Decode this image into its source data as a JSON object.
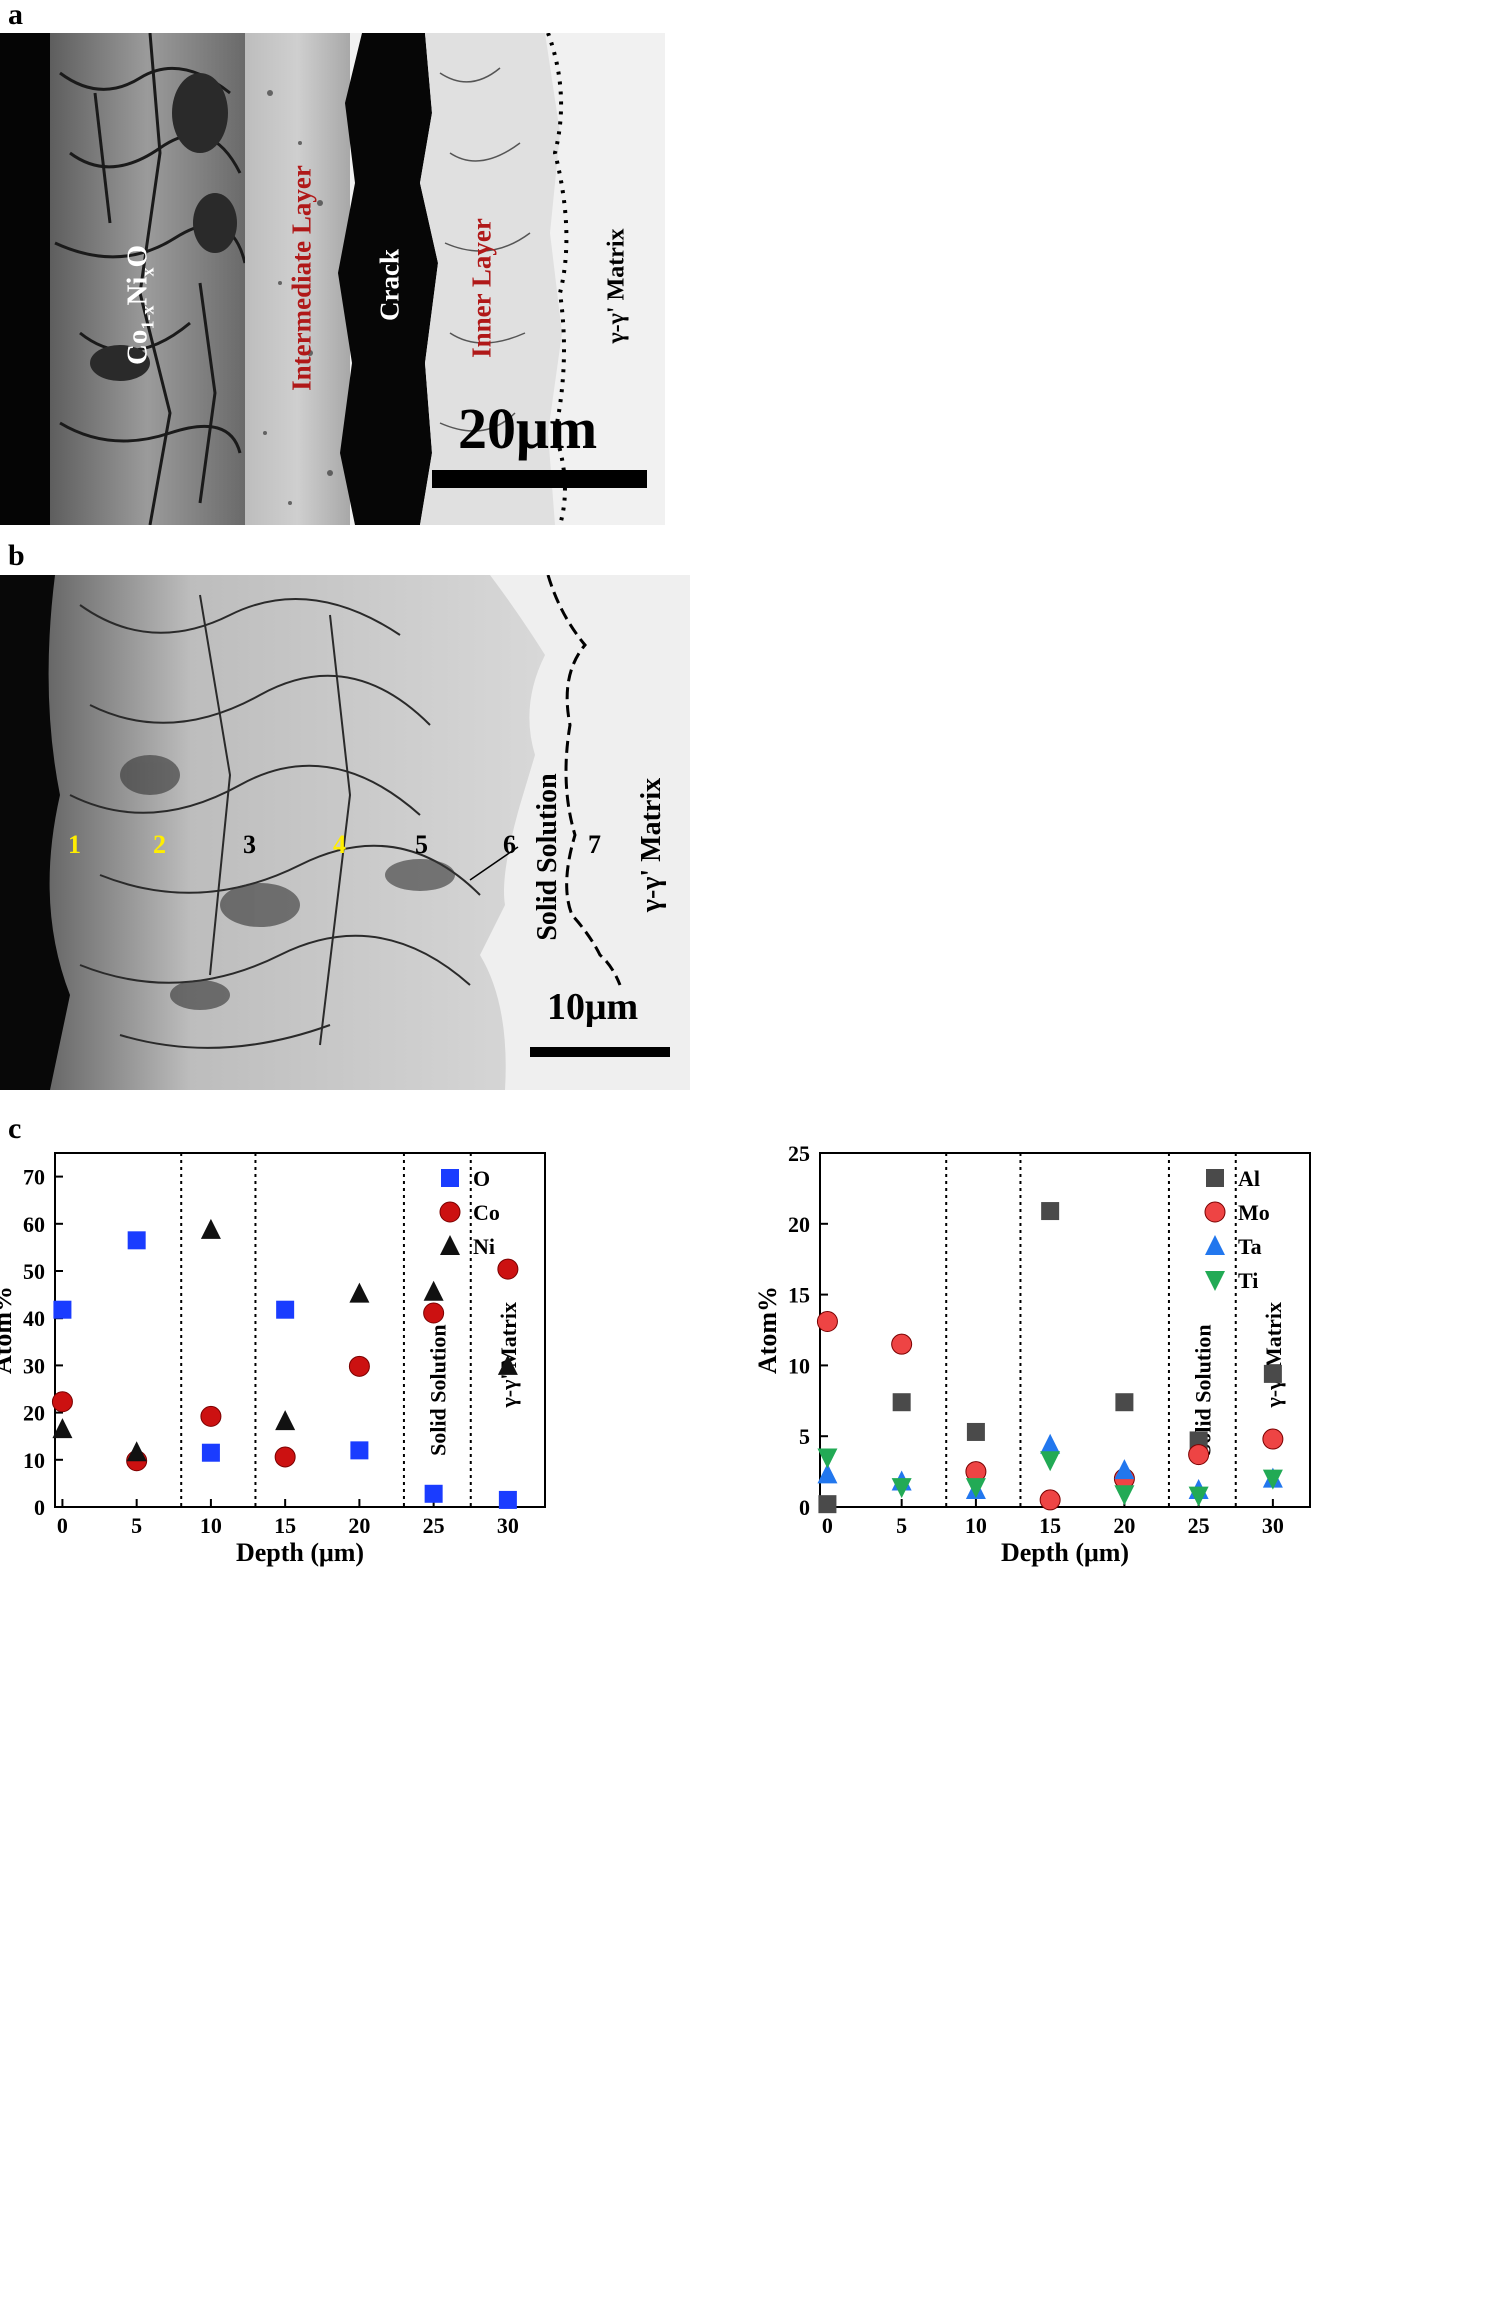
{
  "panels": {
    "a": {
      "label": "a",
      "labels": {
        "oxide": "Co1-xNixO",
        "oxide_base": "Co",
        "oxide_sub1": "1-x",
        "oxide_mid": "Ni",
        "oxide_sub2": "x",
        "oxide_end": "O",
        "intermediate": "Intermediate Layer",
        "crack": "Crack",
        "inner": "Inner Layer",
        "matrix": "γ-γ' Matrix"
      },
      "scale_bar": "20μm"
    },
    "b": {
      "label": "b",
      "points": [
        "1",
        "2",
        "3",
        "4",
        "5",
        "6",
        "7"
      ],
      "labels": {
        "solid_solution": "Solid Solution",
        "matrix": "γ-γ' Matrix"
      },
      "scale_bar": "10μm"
    },
    "c": {
      "label": "c"
    }
  },
  "colors": {
    "O": "#1a3cff",
    "Co": "#cc1111",
    "Ni": "#111111",
    "Al": "#4a4a4a",
    "Mo": "#ee4444",
    "Ta": "#2277ee",
    "Ti": "#22aa55",
    "highlight_point": "#ffee00",
    "layer_text": "#b01818"
  },
  "chart_data": [
    {
      "type": "scatter",
      "xlabel": "Depth (μm)",
      "ylabel": "Atom%",
      "xlim": [
        -0.5,
        32.5
      ],
      "ylim": [
        0,
        75
      ],
      "xticks": [
        0,
        5,
        10,
        15,
        20,
        25,
        30
      ],
      "yticks": [
        0,
        10,
        20,
        30,
        40,
        50,
        60,
        70
      ],
      "region_dividers": [
        8,
        13,
        23,
        27.5
      ],
      "annotations": [
        "Solid Solution",
        "γ-γ' Matrix"
      ],
      "legend_position": "top-right",
      "series": [
        {
          "name": "O",
          "marker": "square",
          "x": [
            0,
            5,
            10,
            15,
            20,
            25,
            30
          ],
          "y": [
            41.8,
            56.5,
            11.5,
            41.8,
            12.0,
            2.8,
            1.5
          ]
        },
        {
          "name": "Co",
          "marker": "circle",
          "x": [
            0,
            5,
            10,
            15,
            20,
            25,
            30
          ],
          "y": [
            22.3,
            9.8,
            19.2,
            10.6,
            29.8,
            41.1,
            50.4
          ]
        },
        {
          "name": "Ni",
          "marker": "triangle",
          "x": [
            0,
            5,
            10,
            15,
            20,
            25,
            30
          ],
          "y": [
            16.5,
            11.6,
            58.7,
            18.2,
            45.2,
            45.6,
            29.9
          ]
        }
      ]
    },
    {
      "type": "scatter",
      "xlabel": "Depth (μm)",
      "ylabel": "Atom%",
      "xlim": [
        -0.5,
        32.5
      ],
      "ylim": [
        0,
        25
      ],
      "xticks": [
        0,
        5,
        10,
        15,
        20,
        25,
        30
      ],
      "yticks": [
        0,
        5,
        10,
        15,
        20,
        25
      ],
      "region_dividers": [
        8,
        13,
        23,
        27.5
      ],
      "annotations": [
        "Solid Solution",
        "γ-γ' Matrix"
      ],
      "legend_position": "top-right",
      "series": [
        {
          "name": "Al",
          "marker": "square",
          "x": [
            0,
            5,
            10,
            15,
            20,
            25,
            30
          ],
          "y": [
            0.2,
            7.4,
            5.3,
            20.9,
            7.4,
            4.7,
            9.4
          ]
        },
        {
          "name": "Mo",
          "marker": "circle",
          "x": [
            0,
            5,
            10,
            15,
            20,
            25,
            30
          ],
          "y": [
            13.1,
            11.5,
            2.5,
            0.5,
            2.0,
            3.7,
            4.8
          ]
        },
        {
          "name": "Ta",
          "marker": "triangle",
          "x": [
            0,
            5,
            10,
            15,
            20,
            25,
            30
          ],
          "y": [
            2.3,
            1.8,
            1.2,
            4.4,
            2.6,
            1.2,
            2.0
          ]
        },
        {
          "name": "Ti",
          "marker": "triangle-down",
          "x": [
            0,
            5,
            10,
            15,
            20,
            25,
            30
          ],
          "y": [
            3.5,
            1.4,
            1.4,
            3.3,
            0.9,
            0.8,
            2.0
          ]
        }
      ]
    }
  ]
}
